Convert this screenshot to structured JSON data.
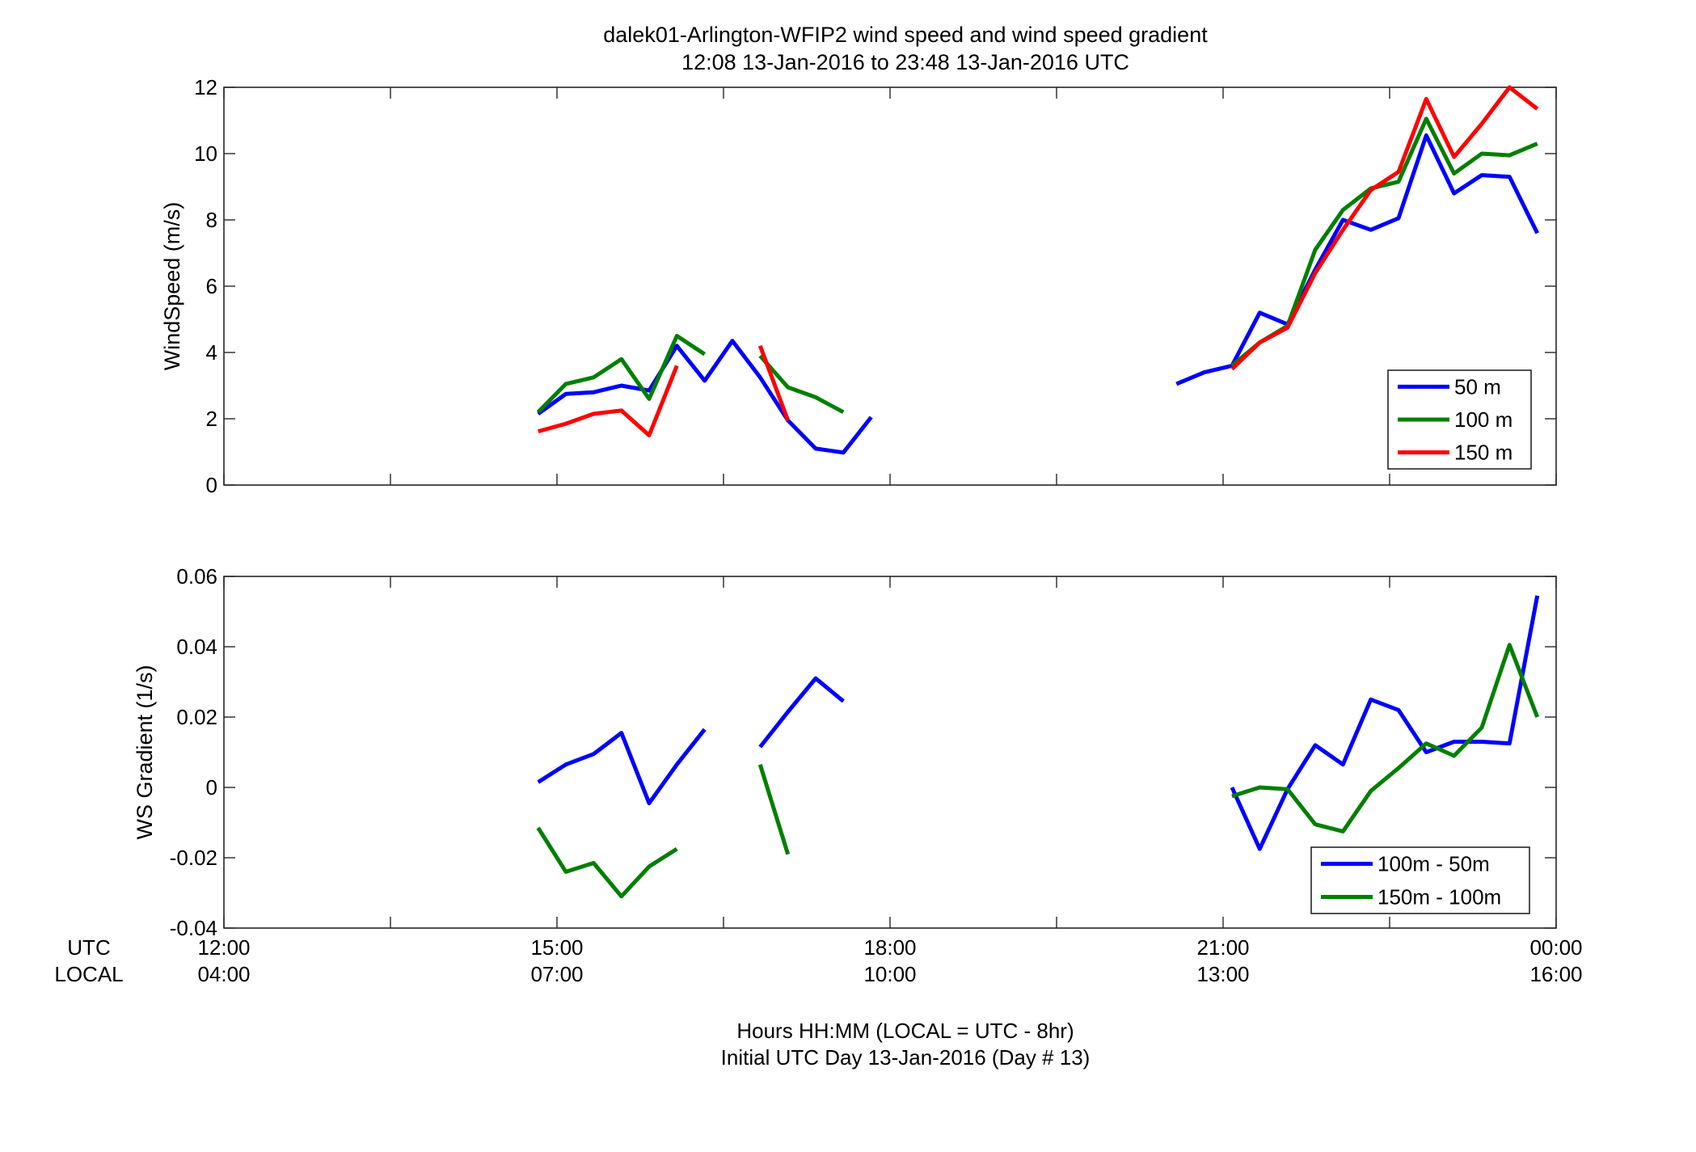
{
  "figure": {
    "title_line1": "dalek01-Arlington-WFIP2  wind speed and wind speed gradient",
    "title_line2": "12:08 13-Jan-2016 to 23:48 13-Jan-2016  UTC",
    "row_label_utc": "UTC",
    "row_label_local": "LOCAL",
    "xlabel_line1": "Hours HH:MM  (LOCAL = UTC - 8hr)",
    "xlabel_line2": "Initial UTC Day 13-Jan-2016 (Day # 13)",
    "x_ticks_utc": [
      "12:00",
      "15:00",
      "18:00",
      "21:00",
      "00:00"
    ],
    "x_ticks_local": [
      "04:00",
      "07:00",
      "10:00",
      "13:00",
      "16:00"
    ]
  },
  "colors": {
    "blue": "#0000ff",
    "green": "#007f00",
    "red": "#ff0000",
    "axis": "#262626"
  },
  "chart_data": [
    {
      "type": "line",
      "ylabel": "WindSpeed (m/s)",
      "xlim": [
        12,
        24
      ],
      "ylim": [
        0,
        12
      ],
      "x_ticks": [
        12,
        15,
        18,
        21,
        24
      ],
      "y_ticks": [
        0,
        2,
        4,
        6,
        8,
        10,
        12
      ],
      "grid": false,
      "legend_position": "lower-right",
      "series": [
        {
          "name": "50 m",
          "color": "#0000ff",
          "segments": [
            [
              [
                14.83,
                2.15
              ],
              [
                15.08,
                2.75
              ],
              [
                15.33,
                2.8
              ],
              [
                15.58,
                3.0
              ],
              [
                15.83,
                2.85
              ],
              [
                16.08,
                4.2
              ],
              [
                16.33,
                3.15
              ],
              [
                16.58,
                4.35
              ],
              [
                16.83,
                3.25
              ],
              [
                17.08,
                1.95
              ],
              [
                17.33,
                1.1
              ],
              [
                17.58,
                0.98
              ],
              [
                17.83,
                2.05
              ]
            ],
            [
              [
                20.58,
                3.05
              ],
              [
                20.83,
                3.4
              ],
              [
                21.08,
                3.6
              ],
              [
                21.33,
                5.2
              ],
              [
                21.58,
                4.85
              ],
              [
                21.83,
                6.5
              ],
              [
                22.08,
                8.0
              ],
              [
                22.33,
                7.7
              ],
              [
                22.58,
                8.05
              ],
              [
                22.83,
                10.55
              ],
              [
                23.08,
                8.8
              ],
              [
                23.33,
                9.35
              ],
              [
                23.58,
                9.3
              ],
              [
                23.83,
                7.6
              ]
            ]
          ]
        },
        {
          "name": "100 m",
          "color": "#007f00",
          "segments": [
            [
              [
                14.83,
                2.2
              ],
              [
                15.08,
                3.05
              ],
              [
                15.33,
                3.25
              ],
              [
                15.58,
                3.8
              ],
              [
                15.83,
                2.6
              ],
              [
                16.08,
                4.5
              ],
              [
                16.33,
                3.95
              ]
            ],
            [
              [
                16.83,
                3.9
              ],
              [
                17.08,
                2.95
              ],
              [
                17.33,
                2.65
              ],
              [
                17.58,
                2.2
              ]
            ],
            [
              [
                21.08,
                3.6
              ],
              [
                21.33,
                4.3
              ],
              [
                21.58,
                4.8
              ],
              [
                21.83,
                7.1
              ],
              [
                22.08,
                8.3
              ],
              [
                22.33,
                8.95
              ],
              [
                22.58,
                9.15
              ],
              [
                22.83,
                11.05
              ],
              [
                23.08,
                9.4
              ],
              [
                23.33,
                10.0
              ],
              [
                23.58,
                9.95
              ],
              [
                23.83,
                10.3
              ]
            ]
          ]
        },
        {
          "name": "150 m",
          "color": "#ff0000",
          "segments": [
            [
              [
                14.83,
                1.62
              ],
              [
                15.08,
                1.85
              ],
              [
                15.33,
                2.15
              ],
              [
                15.58,
                2.25
              ],
              [
                15.83,
                1.5
              ],
              [
                16.08,
                3.6
              ]
            ],
            [
              [
                16.83,
                4.2
              ],
              [
                17.08,
                1.95
              ]
            ],
            [
              [
                21.08,
                3.5
              ],
              [
                21.33,
                4.3
              ],
              [
                21.58,
                4.75
              ],
              [
                21.83,
                6.4
              ],
              [
                22.08,
                7.7
              ],
              [
                22.33,
                8.9
              ],
              [
                22.58,
                9.45
              ],
              [
                22.83,
                11.65
              ],
              [
                23.08,
                9.9
              ],
              [
                23.33,
                10.9
              ],
              [
                23.58,
                12.0
              ],
              [
                23.83,
                11.35
              ]
            ]
          ]
        }
      ]
    },
    {
      "type": "line",
      "ylabel": "WS Gradient (1/s)",
      "xlim": [
        12,
        24
      ],
      "ylim": [
        -0.04,
        0.06
      ],
      "x_ticks": [
        12,
        15,
        18,
        21,
        24
      ],
      "y_ticks": [
        -0.04,
        -0.02,
        0,
        0.02,
        0.04,
        0.06
      ],
      "y_tick_labels": [
        "-0.04",
        "-0.02",
        "0",
        "0.02",
        "0.04",
        "0.06"
      ],
      "grid": false,
      "legend_position": "lower-right",
      "series": [
        {
          "name": "100m - 50m",
          "color": "#0000ff",
          "segments": [
            [
              [
                14.83,
                0.0015
              ],
              [
                15.08,
                0.0065
              ],
              [
                15.33,
                0.0095
              ],
              [
                15.58,
                0.0155
              ],
              [
                15.83,
                -0.0045
              ],
              [
                16.08,
                0.0065
              ],
              [
                16.33,
                0.0165
              ]
            ],
            [
              [
                16.83,
                0.0115
              ],
              [
                17.08,
                0.0215
              ],
              [
                17.33,
                0.031
              ],
              [
                17.58,
                0.0245
              ]
            ],
            [
              [
                21.08,
                0.0
              ],
              [
                21.33,
                -0.0175
              ],
              [
                21.58,
                -0.0005
              ],
              [
                21.83,
                0.012
              ],
              [
                22.08,
                0.0065
              ],
              [
                22.33,
                0.025
              ],
              [
                22.58,
                0.022
              ],
              [
                22.83,
                0.01
              ],
              [
                23.08,
                0.013
              ],
              [
                23.33,
                0.013
              ],
              [
                23.58,
                0.0125
              ],
              [
                23.83,
                0.0545
              ]
            ]
          ]
        },
        {
          "name": "150m - 100m",
          "color": "#007f00",
          "segments": [
            [
              [
                14.83,
                -0.0115
              ],
              [
                15.08,
                -0.024
              ],
              [
                15.33,
                -0.0215
              ],
              [
                15.58,
                -0.031
              ],
              [
                15.83,
                -0.0225
              ],
              [
                16.08,
                -0.0175
              ]
            ],
            [
              [
                16.83,
                0.0065
              ],
              [
                17.08,
                -0.019
              ]
            ],
            [
              [
                21.08,
                -0.0025
              ],
              [
                21.33,
                0.0
              ],
              [
                21.58,
                -0.0005
              ],
              [
                21.83,
                -0.0105
              ],
              [
                22.08,
                -0.0125
              ],
              [
                22.33,
                -0.001
              ],
              [
                22.58,
                0.0055
              ],
              [
                22.83,
                0.0125
              ],
              [
                23.08,
                0.009
              ],
              [
                23.33,
                0.017
              ],
              [
                23.58,
                0.0405
              ],
              [
                23.83,
                0.02
              ]
            ]
          ]
        }
      ]
    }
  ]
}
